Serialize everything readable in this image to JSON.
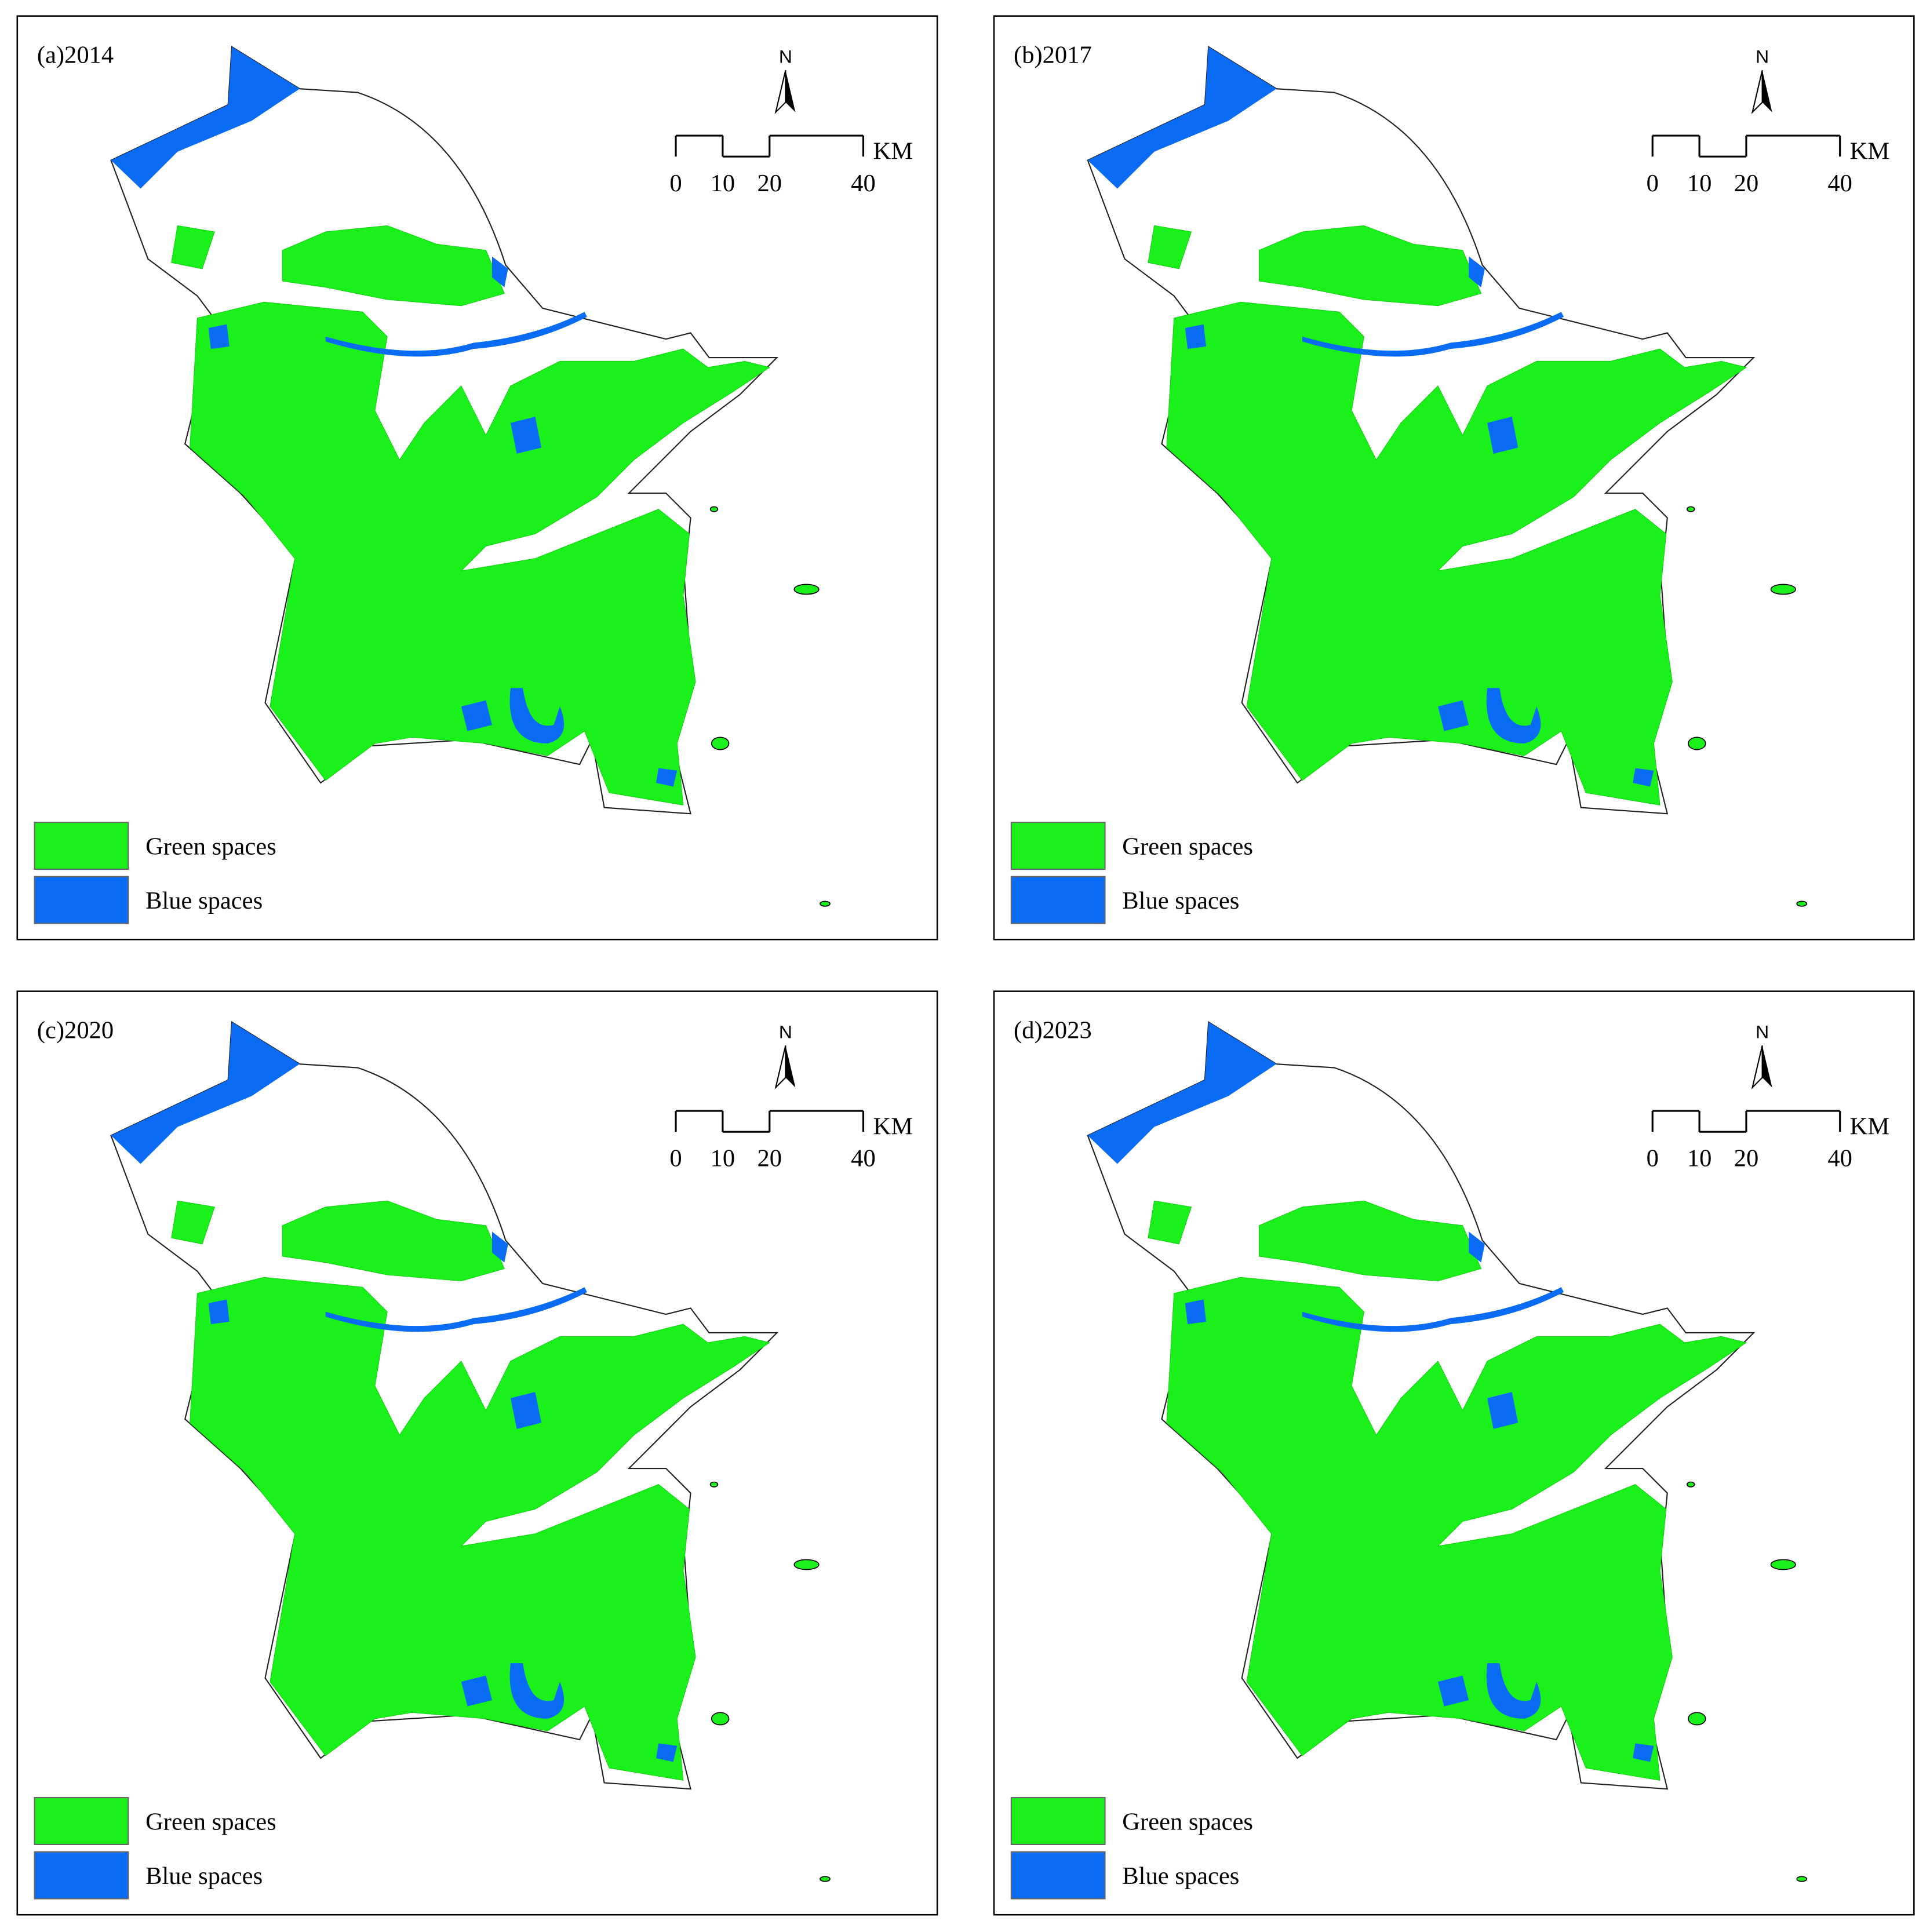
{
  "panels": [
    {
      "title": "(a)2014",
      "north": "N",
      "scale_unit": "KM",
      "scale_ticks": [
        0,
        10,
        20,
        40
      ],
      "legend": [
        "Green spaces",
        "Blue spaces"
      ]
    },
    {
      "title": "(b)2017",
      "north": "N",
      "scale_unit": "KM",
      "scale_ticks": [
        0,
        10,
        20,
        40
      ],
      "legend": [
        "Green spaces",
        "Blue spaces"
      ]
    },
    {
      "title": "(c)2020",
      "north": "N",
      "scale_unit": "KM",
      "scale_ticks": [
        0,
        10,
        20,
        40
      ],
      "legend": [
        "Green spaces",
        "Blue spaces"
      ]
    },
    {
      "title": "(d)2023",
      "north": "N",
      "scale_unit": "KM",
      "scale_ticks": [
        0,
        10,
        20,
        40
      ],
      "legend": [
        "Green spaces",
        "Blue spaces"
      ]
    }
  ]
}
